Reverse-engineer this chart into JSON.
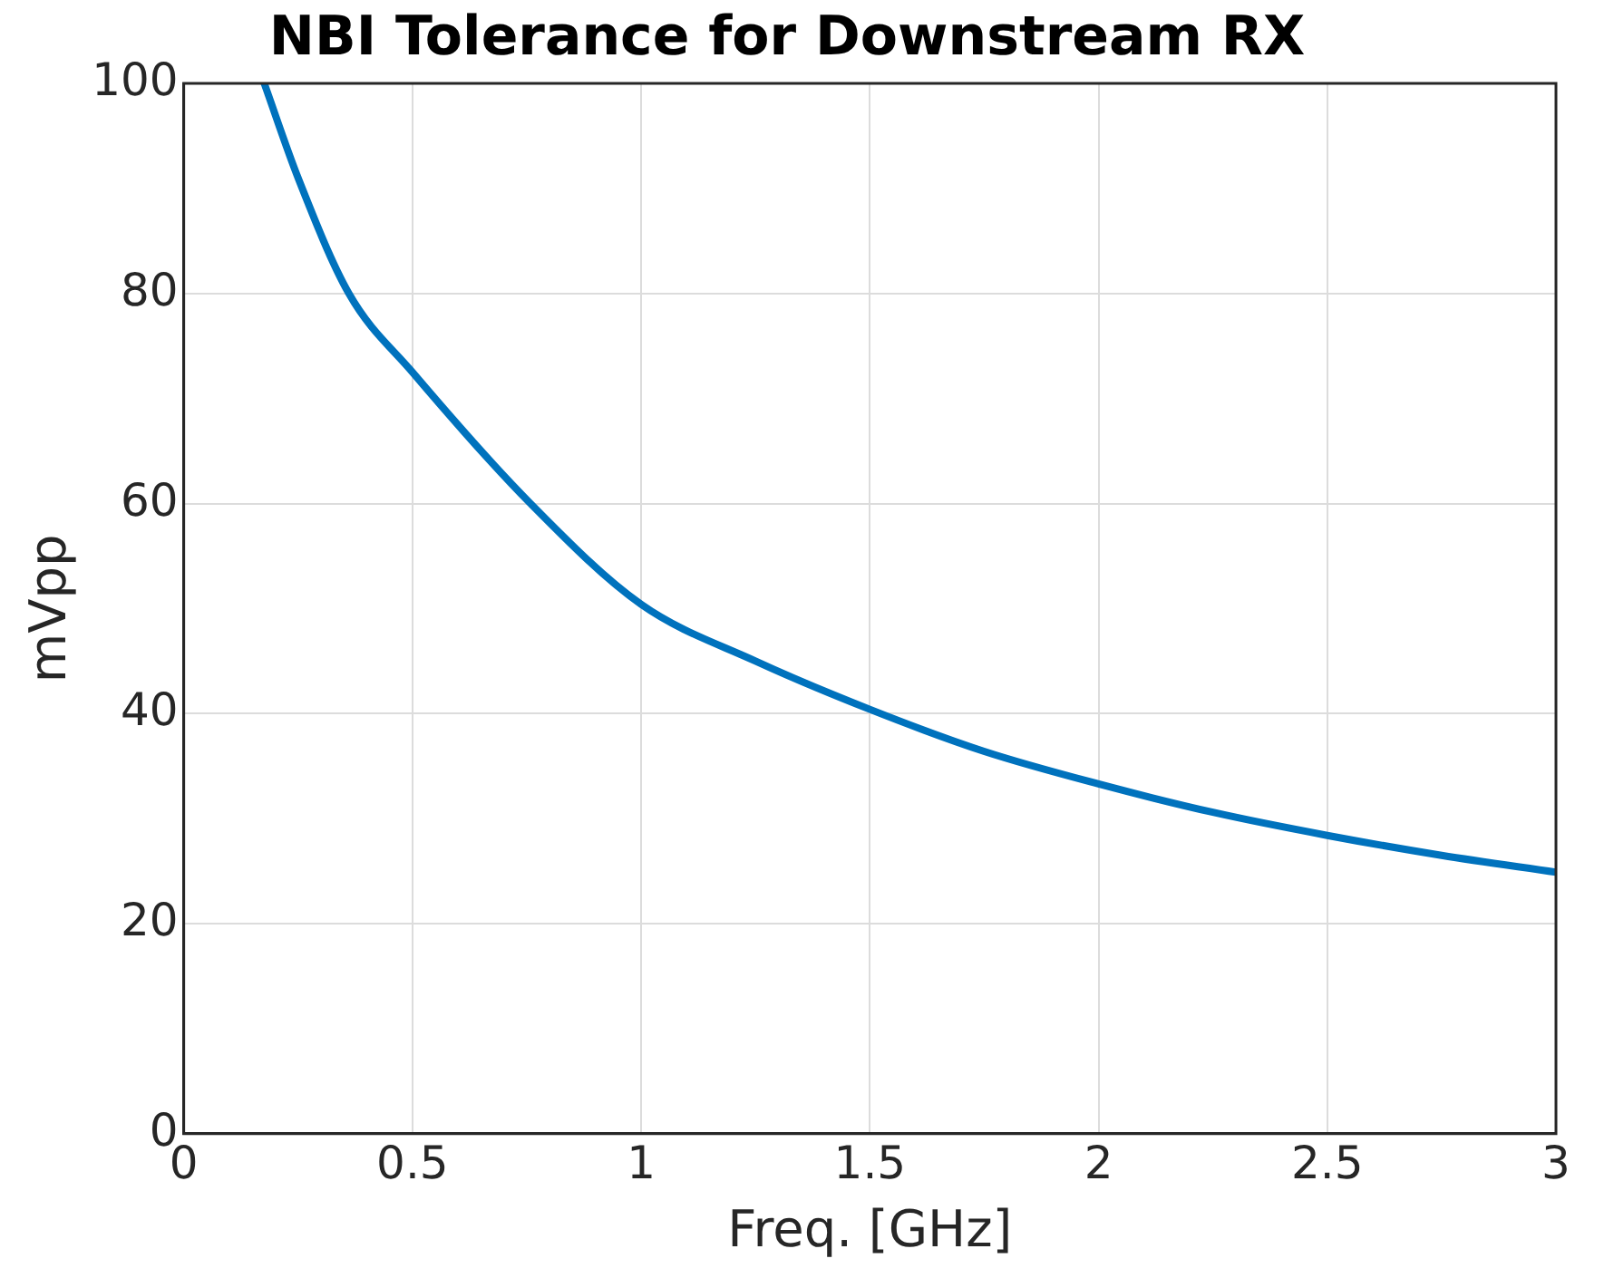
{
  "chart_data": {
    "type": "line",
    "title": "NBI Tolerance for Downstream RX",
    "xlabel": "Freq. [GHz]",
    "ylabel": "mVpp",
    "x": [
      0.176,
      0.25,
      0.361,
      0.5,
      0.758,
      1,
      1.25,
      1.5,
      1.75,
      2,
      2.25,
      2.5,
      2.75,
      3
    ],
    "series": [
      {
        "color": "#0072bd",
        "values": [
          100,
          91,
          80,
          72.5,
          60,
          50.4,
          45,
          40.4,
          36.4,
          33.3,
          30.6,
          28.4,
          26.5,
          24.9
        ]
      }
    ],
    "xlim": [
      0,
      3
    ],
    "xticks": [
      0,
      0.5,
      1,
      1.5,
      2,
      2.5,
      3
    ],
    "ylim": [
      0,
      100
    ],
    "yticks": [
      0,
      20,
      40,
      60,
      80,
      100
    ],
    "grid": true,
    "legend": false,
    "marker": "none",
    "line_style": "solid"
  }
}
